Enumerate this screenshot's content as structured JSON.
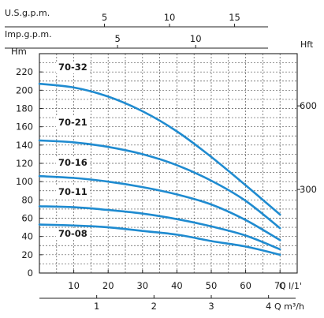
{
  "chart_data": {
    "type": "line",
    "title": "",
    "xlabel": "Q l/1'",
    "ylabel": "Hm",
    "xlim": [
      0,
      75
    ],
    "ylim": [
      0,
      240
    ],
    "grid": true,
    "y_ticks": [
      0,
      20,
      40,
      60,
      80,
      100,
      120,
      140,
      160,
      180,
      200,
      220
    ],
    "x_ticks": [
      10,
      20,
      30,
      40,
      50,
      60,
      70
    ],
    "y_unit": "Hm",
    "x_unit": "Q l/1'",
    "secondary_axes": {
      "us_gpm": {
        "label": "U.S.g.p.m.",
        "ticks": [
          5,
          10,
          15
        ]
      },
      "imp_gpm": {
        "label": "Imp.g.p.m.",
        "ticks": [
          5,
          10
        ]
      },
      "m3h": {
        "label": "Q m³/h",
        "ticks": [
          1,
          2,
          3,
          4
        ]
      },
      "hft": {
        "label": "Hft",
        "ticks": [
          300,
          600
        ]
      }
    },
    "series": [
      {
        "name": "70-32",
        "x": [
          0,
          10,
          20,
          30,
          40,
          50,
          60,
          70
        ],
        "y": [
          207,
          203,
          193,
          177,
          155,
          127,
          96,
          64
        ]
      },
      {
        "name": "70-21",
        "x": [
          0,
          10,
          20,
          30,
          40,
          50,
          60,
          70
        ],
        "y": [
          145,
          143,
          138,
          130,
          118,
          101,
          79,
          49
        ]
      },
      {
        "name": "70-16",
        "x": [
          0,
          10,
          20,
          30,
          40,
          50,
          60,
          70
        ],
        "y": [
          106,
          104,
          100,
          94,
          86,
          75,
          58,
          36
        ]
      },
      {
        "name": "70-11",
        "x": [
          0,
          10,
          20,
          30,
          40,
          50,
          60,
          70
        ],
        "y": [
          73,
          72,
          69,
          65,
          59,
          51,
          41,
          26
        ]
      },
      {
        "name": "70-08",
        "x": [
          0,
          10,
          20,
          30,
          40,
          50,
          60,
          70
        ],
        "y": [
          53,
          52,
          50,
          46,
          42,
          35,
          29,
          20
        ]
      }
    ],
    "series_color": "#1f8bd0"
  }
}
